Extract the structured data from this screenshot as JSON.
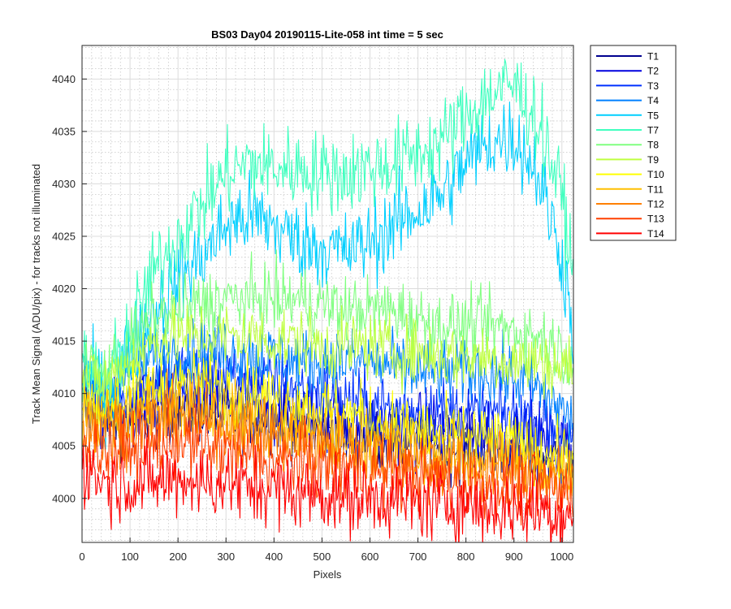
{
  "chart_data": {
    "type": "line",
    "title": "BS03 Day04 20190115-Lite-058 int time = 5 sec",
    "xlabel": "Pixels",
    "ylabel": "Track Mean Signal (ADU/pix) - for tracks not illuminated",
    "xlim": [
      0,
      1024
    ],
    "ylim": [
      3995.8,
      4043.2
    ],
    "xticks": [
      0,
      100,
      200,
      300,
      400,
      500,
      600,
      700,
      800,
      900,
      1000
    ],
    "yticks": [
      4000,
      4005,
      4010,
      4015,
      4020,
      4025,
      4030,
      4035,
      4040
    ],
    "grid": "on (major + minor)",
    "legend_position": "outside-right",
    "x": [
      0,
      50,
      100,
      150,
      200,
      250,
      300,
      350,
      400,
      450,
      500,
      550,
      600,
      650,
      700,
      750,
      800,
      850,
      900,
      950,
      1000,
      1024
    ],
    "series": [
      {
        "name": "T1",
        "color": "#00008f",
        "noise": 1.6,
        "values": [
          4009,
          4007.5,
          4007.5,
          4008,
          4008.5,
          4008.5,
          4008,
          4008,
          4007.5,
          4007,
          4006.5,
          4006,
          4006,
          4005.5,
          4005.5,
          4005,
          4005,
          4005,
          4004.5,
          4004,
          4003.5,
          4003
        ]
      },
      {
        "name": "T2",
        "color": "#0000df",
        "noise": 1.8,
        "values": [
          4009.5,
          4008,
          4008,
          4009,
          4009.5,
          4009.5,
          4009.5,
          4009,
          4008.5,
          4008,
          4007.5,
          4007,
          4007,
          4006.5,
          4006.5,
          4006.5,
          4006.5,
          4006.5,
          4006,
          4005.5,
          4005,
          4004.5
        ]
      },
      {
        "name": "T3",
        "color": "#0030ff",
        "noise": 1.6,
        "values": [
          4010,
          4009,
          4010,
          4011.5,
          4012,
          4012,
          4012,
          4011.5,
          4011,
          4010.5,
          4010,
          4009.5,
          4009,
          4008.5,
          4008.5,
          4008.5,
          4008,
          4008,
          4008,
          4007.5,
          4006.5,
          4005
        ]
      },
      {
        "name": "T4",
        "color": "#0080ff",
        "noise": 1.6,
        "values": [
          4011,
          4010,
          4012,
          4013.5,
          4014,
          4014,
          4014,
          4013.5,
          4013.5,
          4013,
          4013,
          4013,
          4013,
          4012.5,
          4012,
          4012,
          4012,
          4012,
          4011.5,
          4010.5,
          4008.5,
          4007
        ]
      },
      {
        "name": "T5",
        "color": "#00cfff",
        "noise": 2.0,
        "values": [
          4012,
          4010,
          4014,
          4018,
          4021,
          4023,
          4026,
          4027,
          4026,
          4024.5,
          4024,
          4023.5,
          4024.5,
          4026,
          4027.5,
          4029,
          4032,
          4034,
          4034.5,
          4031,
          4023,
          4016
        ]
      },
      {
        "name": "T7",
        "color": "#40ffbf",
        "noise": 2.0,
        "values": [
          4012.5,
          4011,
          4016,
          4021.5,
          4025,
          4028,
          4031,
          4032,
          4031.5,
          4031.5,
          4031,
          4031,
          4031.5,
          4032,
          4033,
          4034,
          4036.5,
          4038.5,
          4039.5,
          4036,
          4029,
          4021
        ]
      },
      {
        "name": "T8",
        "color": "#80ff80",
        "noise": 1.6,
        "values": [
          4012.5,
          4012,
          4014.5,
          4017,
          4018,
          4018.5,
          4019,
          4019,
          4019,
          4019,
          4018.5,
          4018,
          4018,
          4018,
          4017,
          4016.5,
          4016.5,
          4016.5,
          4016,
          4015.5,
          4014,
          4013.5
        ]
      },
      {
        "name": "T9",
        "color": "#bfff40",
        "noise": 1.6,
        "values": [
          4011.5,
          4011,
          4013,
          4015,
          4015.5,
          4015.5,
          4015.5,
          4015.5,
          4015,
          4015,
          4014.5,
          4014.5,
          4014.5,
          4014,
          4014,
          4013.5,
          4013.5,
          4013.5,
          4013,
          4013,
          4012.5,
          4012.5
        ]
      },
      {
        "name": "T10",
        "color": "#ffff00",
        "noise": 1.6,
        "values": [
          4009,
          4008.5,
          4009.5,
          4010.5,
          4011,
          4011,
          4010.5,
          4010,
          4009.5,
          4009,
          4008.5,
          4008,
          4007.5,
          4007,
          4006.5,
          4006,
          4006,
          4005.5,
          4005,
          4004.5,
          4004,
          4004
        ]
      },
      {
        "name": "T11",
        "color": "#ffbf00",
        "noise": 1.6,
        "values": [
          4008,
          4007.5,
          4008,
          4008.5,
          4009,
          4008.5,
          4008,
          4007.5,
          4007,
          4006.5,
          4006,
          4005.5,
          4005.5,
          4005,
          4004.5,
          4004,
          4004,
          4003.5,
          4003.5,
          4003,
          4002.5,
          4002.5
        ]
      },
      {
        "name": "T12",
        "color": "#ff8000",
        "noise": 1.7,
        "values": [
          4007,
          4006.5,
          4007,
          4007.5,
          4008,
          4007.5,
          4007,
          4006.5,
          4006,
          4005.5,
          4005,
          4004.5,
          4004.5,
          4004,
          4003.5,
          4003.5,
          4003,
          4003,
          4002.5,
          4002,
          4002,
          4001.5
        ]
      },
      {
        "name": "T13",
        "color": "#ff4000",
        "noise": 1.7,
        "values": [
          4005.5,
          4004.5,
          4005,
          4005,
          4005.5,
          4005,
          4004.5,
          4004,
          4003.5,
          4003.5,
          4003,
          4003,
          4002.5,
          4002.5,
          4002,
          4002,
          4001.5,
          4001.5,
          4001,
          4001,
          4000.5,
          4000.5
        ]
      },
      {
        "name": "T14",
        "color": "#ff0000",
        "noise": 1.8,
        "values": [
          4003,
          4001.5,
          4001.5,
          4001.5,
          4002,
          4001.5,
          4001.5,
          4001,
          4001,
          4000.5,
          4000.5,
          4000,
          4000,
          4000,
          3999.5,
          3999.5,
          3999.5,
          3999,
          3999,
          3999,
          3998.5,
          3998.5
        ]
      }
    ]
  }
}
